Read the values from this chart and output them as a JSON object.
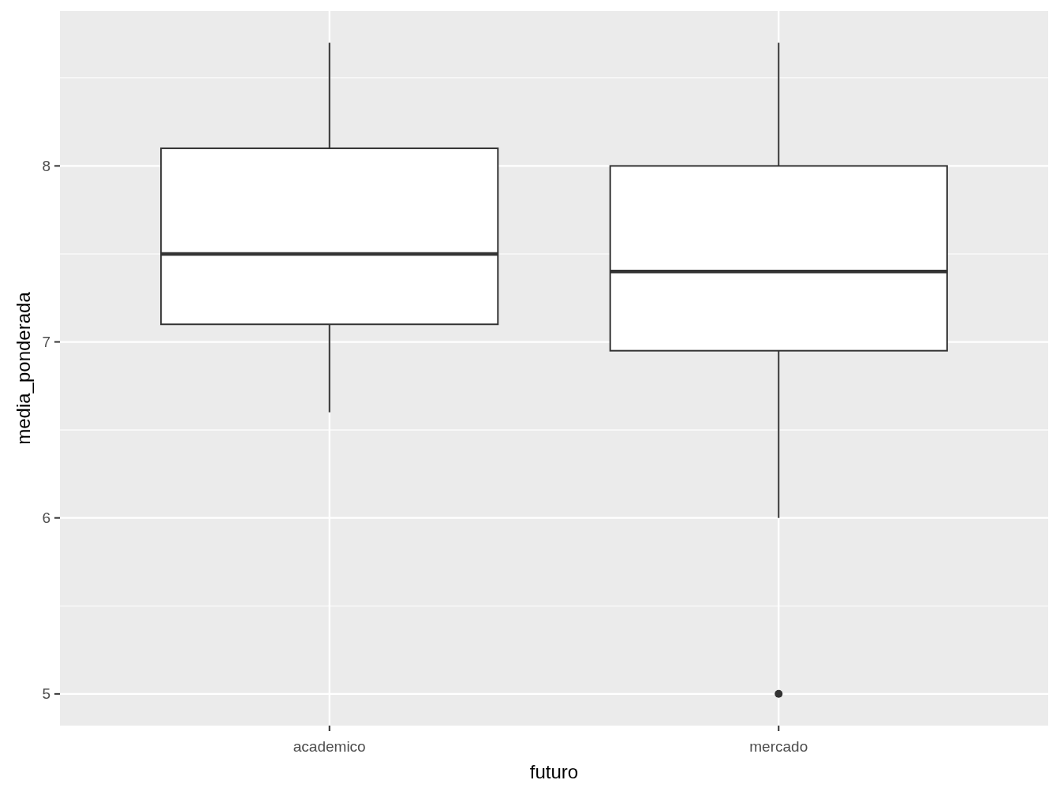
{
  "chart_data": {
    "type": "box",
    "xlabel": "futuro",
    "ylabel": "media_ponderada",
    "categories": [
      "academico",
      "mercado"
    ],
    "boxes": [
      {
        "low": 6.6,
        "q1": 7.1,
        "median": 7.5,
        "q3": 8.1,
        "high": 8.7
      },
      {
        "low": 6.0,
        "q1": 6.95,
        "median": 7.4,
        "q3": 8.0,
        "high": 8.7,
        "outliers": [
          5
        ]
      }
    ],
    "color": "#ffffff",
    "ylim": [
      4.82,
      8.88
    ],
    "yticks": [
      5,
      6,
      7,
      8
    ],
    "grid": true
  }
}
